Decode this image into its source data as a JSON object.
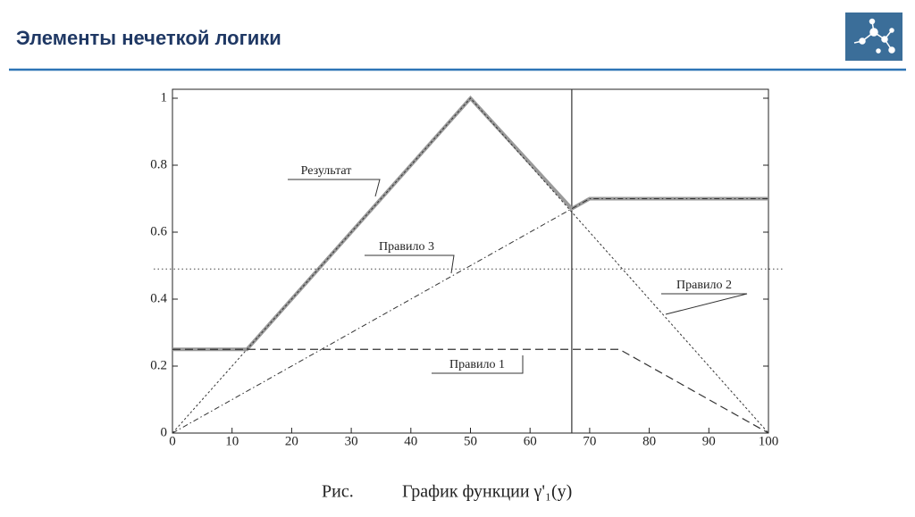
{
  "header": {
    "title": "Элементы нечеткой логики"
  },
  "chart_data": {
    "type": "line",
    "xlim": [
      0,
      100
    ],
    "xticks": [
      0,
      10,
      20,
      30,
      40,
      50,
      60,
      70,
      80,
      90,
      100
    ],
    "ylim": [
      0,
      1
    ],
    "yticks": [
      0,
      0.2,
      0.4,
      0.6,
      0.8,
      1
    ],
    "series": [
      {
        "name": "Результат",
        "color": "#9a9a9a",
        "x": [
          0,
          12.5,
          50,
          67,
          70,
          100
        ],
        "values": [
          0.25,
          0.25,
          1,
          0.67,
          0.7,
          0.7
        ]
      },
      {
        "name": "Правило 3",
        "color": "#333333",
        "x": [
          0,
          70,
          100
        ],
        "values": [
          0,
          0.7,
          0.7
        ]
      },
      {
        "name": "Правило 2",
        "color": "#333333",
        "x": [
          0,
          50,
          100
        ],
        "values": [
          0,
          1,
          0
        ]
      },
      {
        "name": "Правило 1",
        "color": "#333333",
        "x": [
          0,
          75,
          100
        ],
        "values": [
          0.25,
          0.25,
          0
        ]
      }
    ],
    "vlines": [
      67
    ],
    "hlines": [
      0.49
    ],
    "caption_label": "Рис.",
    "caption": "График функции γ'₁(y)"
  }
}
